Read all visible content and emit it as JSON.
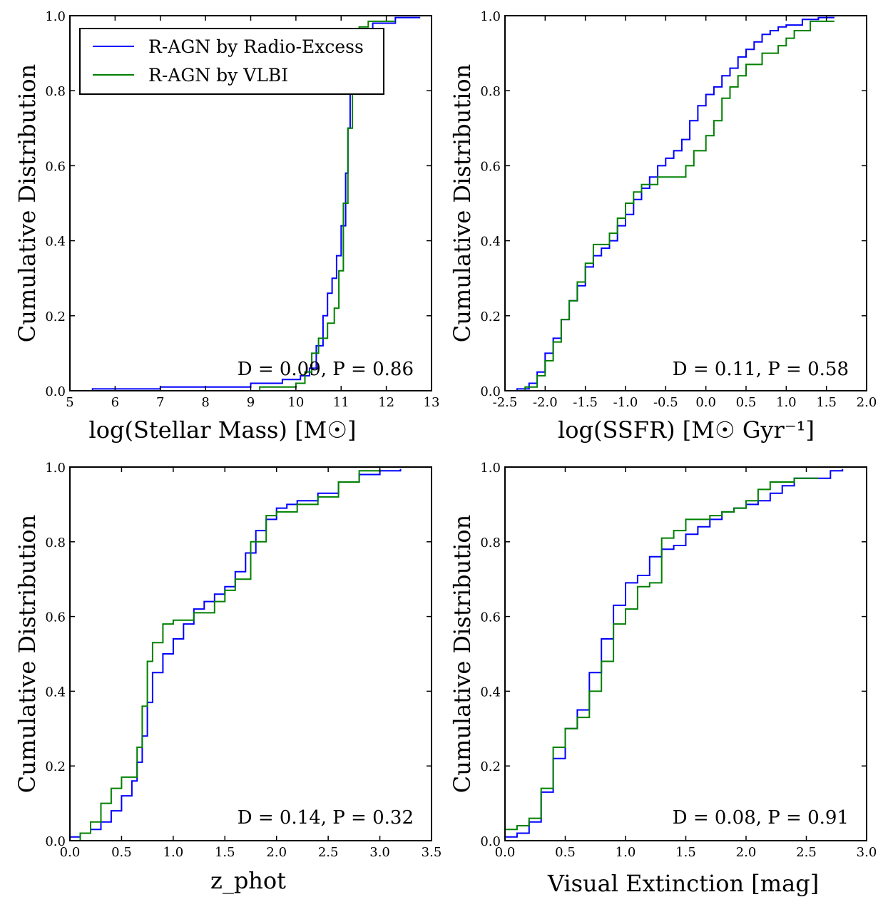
{
  "legend": {
    "entries": [
      {
        "label": "R-AGN by Radio-Excess",
        "color": "#0000ff"
      },
      {
        "label": "R-AGN by VLBI",
        "color": "#008000"
      }
    ],
    "placement": "top-left of first panel"
  },
  "chart_data": [
    {
      "type": "line",
      "style": "cumulative step",
      "xlabel": "log(Stellar Mass) [M☉]",
      "ylabel": "Cumulative Distribution",
      "xlim": [
        5,
        13
      ],
      "ylim": [
        0,
        1
      ],
      "xticks": [
        "5",
        "6",
        "7",
        "8",
        "9",
        "10",
        "11",
        "12",
        "13"
      ],
      "yticks": [
        "0.0",
        "0.2",
        "0.4",
        "0.6",
        "0.8",
        "1.0"
      ],
      "annotation": "D = 0.09, P = 0.86",
      "series": [
        {
          "name": "R-AGN by Radio-Excess",
          "color": "#0000ff",
          "x": [
            5.5,
            7.0,
            9.0,
            9.7,
            10.1,
            10.3,
            10.45,
            10.6,
            10.7,
            10.8,
            10.9,
            11.0,
            11.1,
            11.15,
            11.2,
            11.3,
            11.5,
            11.7,
            12.2,
            12.75
          ],
          "y": [
            0.005,
            0.01,
            0.02,
            0.03,
            0.04,
            0.06,
            0.12,
            0.2,
            0.26,
            0.3,
            0.36,
            0.44,
            0.58,
            0.7,
            0.8,
            0.88,
            0.95,
            0.98,
            0.995,
            0.995
          ]
        },
        {
          "name": "R-AGN by VLBI",
          "color": "#008000",
          "x": [
            9.2,
            10.0,
            10.2,
            10.35,
            10.5,
            10.7,
            10.85,
            10.95,
            11.05,
            11.15,
            11.25,
            11.4,
            11.6,
            12.2
          ],
          "y": [
            0.01,
            0.02,
            0.05,
            0.1,
            0.14,
            0.18,
            0.22,
            0.32,
            0.5,
            0.7,
            0.88,
            0.97,
            0.985,
            0.985
          ]
        }
      ]
    },
    {
      "type": "line",
      "style": "cumulative step",
      "xlabel": "log(SSFR) [M☉ Gyr⁻¹]",
      "ylabel": "Cumulative Distribution",
      "xlim": [
        -2.5,
        2.0
      ],
      "ylim": [
        0,
        1
      ],
      "xticks": [
        "-2.5",
        "-2.0",
        "-1.5",
        "-1.0",
        "-0.5",
        "0.0",
        "0.5",
        "1.0",
        "1.5",
        "2.0"
      ],
      "yticks": [
        "0.0",
        "0.2",
        "0.4",
        "0.6",
        "0.8",
        "1.0"
      ],
      "annotation": "D = 0.11, P = 0.58",
      "series": [
        {
          "name": "R-AGN by Radio-Excess",
          "color": "#0000ff",
          "x": [
            -2.35,
            -2.2,
            -2.1,
            -2.0,
            -1.9,
            -1.8,
            -1.7,
            -1.6,
            -1.5,
            -1.4,
            -1.3,
            -1.2,
            -1.1,
            -1.0,
            -0.9,
            -0.8,
            -0.7,
            -0.6,
            -0.5,
            -0.4,
            -0.3,
            -0.2,
            -0.1,
            0.0,
            0.1,
            0.2,
            0.3,
            0.4,
            0.5,
            0.6,
            0.7,
            0.8,
            0.9,
            1.0,
            1.2,
            1.4,
            1.6
          ],
          "y": [
            0.005,
            0.02,
            0.05,
            0.1,
            0.14,
            0.19,
            0.24,
            0.28,
            0.33,
            0.36,
            0.38,
            0.4,
            0.44,
            0.47,
            0.51,
            0.54,
            0.57,
            0.6,
            0.62,
            0.64,
            0.67,
            0.72,
            0.76,
            0.79,
            0.81,
            0.84,
            0.86,
            0.89,
            0.91,
            0.93,
            0.95,
            0.96,
            0.97,
            0.975,
            0.99,
            0.995,
            0.995
          ]
        },
        {
          "name": "R-AGN by VLBI",
          "color": "#008000",
          "x": [
            -2.25,
            -2.1,
            -2.0,
            -1.9,
            -1.8,
            -1.7,
            -1.6,
            -1.5,
            -1.4,
            -1.2,
            -1.1,
            -1.0,
            -0.9,
            -0.8,
            -0.6,
            -0.25,
            -0.15,
            0.0,
            0.1,
            0.2,
            0.3,
            0.4,
            0.5,
            0.7,
            0.9,
            1.0,
            1.1,
            1.3,
            1.6
          ],
          "y": [
            0.01,
            0.04,
            0.08,
            0.13,
            0.19,
            0.24,
            0.29,
            0.34,
            0.39,
            0.42,
            0.46,
            0.5,
            0.53,
            0.55,
            0.57,
            0.6,
            0.64,
            0.68,
            0.72,
            0.78,
            0.81,
            0.84,
            0.87,
            0.9,
            0.92,
            0.94,
            0.96,
            0.985,
            0.985
          ]
        }
      ]
    },
    {
      "type": "line",
      "style": "cumulative step",
      "xlabel": "z_phot",
      "ylabel": "Cumulative Distribution",
      "xlim": [
        0.0,
        3.5
      ],
      "ylim": [
        0,
        1
      ],
      "xticks": [
        "0.0",
        "0.5",
        "1.0",
        "1.5",
        "2.0",
        "2.5",
        "3.0",
        "3.5"
      ],
      "yticks": [
        "0.0",
        "0.2",
        "0.4",
        "0.6",
        "0.8",
        "1.0"
      ],
      "annotation": "D = 0.14, P = 0.32",
      "series": [
        {
          "name": "R-AGN by Radio-Excess",
          "color": "#0000ff",
          "x": [
            0.0,
            0.1,
            0.2,
            0.3,
            0.4,
            0.5,
            0.6,
            0.65,
            0.7,
            0.75,
            0.8,
            0.9,
            1.0,
            1.1,
            1.2,
            1.3,
            1.4,
            1.5,
            1.6,
            1.7,
            1.8,
            1.9,
            2.0,
            2.1,
            2.2,
            2.4,
            2.6,
            2.8,
            3.0,
            3.2
          ],
          "y": [
            0.01,
            0.02,
            0.03,
            0.05,
            0.08,
            0.12,
            0.16,
            0.21,
            0.28,
            0.37,
            0.45,
            0.5,
            0.54,
            0.58,
            0.62,
            0.64,
            0.66,
            0.68,
            0.72,
            0.77,
            0.83,
            0.86,
            0.89,
            0.9,
            0.91,
            0.93,
            0.96,
            0.98,
            0.99,
            0.995
          ]
        },
        {
          "name": "R-AGN by VLBI",
          "color": "#008000",
          "x": [
            0.1,
            0.2,
            0.3,
            0.4,
            0.5,
            0.65,
            0.7,
            0.75,
            0.8,
            0.9,
            1.0,
            1.2,
            1.4,
            1.5,
            1.6,
            1.75,
            1.9,
            2.0,
            2.2,
            2.4,
            2.6,
            2.8,
            3.0
          ],
          "y": [
            0.02,
            0.05,
            0.1,
            0.14,
            0.17,
            0.25,
            0.36,
            0.48,
            0.53,
            0.58,
            0.59,
            0.61,
            0.64,
            0.67,
            0.7,
            0.8,
            0.87,
            0.88,
            0.9,
            0.92,
            0.96,
            0.99,
            0.995
          ]
        }
      ]
    },
    {
      "type": "line",
      "style": "cumulative step",
      "xlabel": "Visual Extinction [mag]",
      "ylabel": "Cumulative Distribution",
      "xlim": [
        0.0,
        3.0
      ],
      "ylim": [
        0,
        1
      ],
      "xticks": [
        "0.0",
        "0.5",
        "1.0",
        "1.5",
        "2.0",
        "2.5",
        "3.0"
      ],
      "yticks": [
        "0.0",
        "0.2",
        "0.4",
        "0.6",
        "0.8",
        "1.0"
      ],
      "annotation": "D = 0.08, P = 0.91",
      "series": [
        {
          "name": "R-AGN by Radio-Excess",
          "color": "#0000ff",
          "x": [
            0.0,
            0.1,
            0.2,
            0.3,
            0.4,
            0.5,
            0.6,
            0.7,
            0.8,
            0.9,
            1.0,
            1.1,
            1.2,
            1.3,
            1.4,
            1.5,
            1.6,
            1.7,
            1.8,
            1.9,
            2.0,
            2.1,
            2.2,
            2.3,
            2.4,
            2.7,
            2.8
          ],
          "y": [
            0.01,
            0.02,
            0.05,
            0.13,
            0.22,
            0.3,
            0.35,
            0.45,
            0.54,
            0.63,
            0.69,
            0.71,
            0.76,
            0.78,
            0.79,
            0.82,
            0.84,
            0.86,
            0.88,
            0.89,
            0.9,
            0.91,
            0.93,
            0.95,
            0.97,
            0.99,
            0.995
          ]
        },
        {
          "name": "R-AGN by VLBI",
          "color": "#008000",
          "x": [
            0.0,
            0.1,
            0.2,
            0.3,
            0.4,
            0.5,
            0.6,
            0.7,
            0.8,
            0.9,
            1.0,
            1.1,
            1.2,
            1.3,
            1.4,
            1.5,
            1.7,
            1.8,
            1.9,
            2.0,
            2.1,
            2.2,
            2.4,
            2.6
          ],
          "y": [
            0.03,
            0.04,
            0.06,
            0.14,
            0.25,
            0.3,
            0.33,
            0.4,
            0.48,
            0.58,
            0.62,
            0.68,
            0.69,
            0.81,
            0.83,
            0.86,
            0.87,
            0.88,
            0.89,
            0.91,
            0.94,
            0.96,
            0.97,
            0.97
          ]
        }
      ]
    }
  ]
}
